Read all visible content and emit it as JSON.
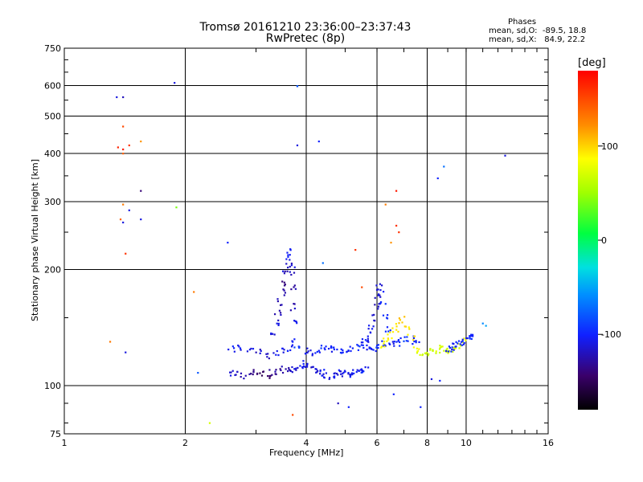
{
  "header": {
    "title_line1": "Tromsø 20161210 23:36:00–23:37:43",
    "title_line2": "RwPretec (8p)",
    "stats_heading": "Phases",
    "stats_o": "mean, sd,O:  -89.5, 18.8",
    "stats_x": "mean, sd,X:   84.9, 22.2"
  },
  "chart_data": {
    "type": "scatter",
    "title": "",
    "xlabel": "Frequency [MHz]",
    "ylabel": "Stationary phase Virtual Height [km]",
    "xscale": "log",
    "yscale": "log",
    "xlim": [
      1,
      16
    ],
    "ylim": [
      75,
      750
    ],
    "x_ticks": [
      1,
      2,
      4,
      6,
      8,
      10,
      16
    ],
    "x_tick_labels": [
      "1",
      "2",
      "4",
      "6",
      "8",
      "10",
      "16"
    ],
    "y_ticks": [
      75,
      100,
      200,
      300,
      400,
      500,
      600,
      750
    ],
    "y_tick_labels": [
      "75",
      "100",
      "200",
      "300",
      "400",
      "500",
      "600",
      "750"
    ],
    "grid": true,
    "colorbar": {
      "label": "[deg]",
      "range": [
        -180,
        180
      ],
      "tick_values": [
        100,
        0,
        -100
      ],
      "tick_labels": [
        "100",
        "0",
        "-100"
      ]
    },
    "series": [
      {
        "x": [
          1.35,
          1.4,
          1.4,
          1.45,
          1.55,
          1.4,
          1.36,
          1.4,
          1.55,
          1.4,
          1.45,
          1.38,
          1.55,
          1.4,
          1.42,
          1.3,
          1.42,
          1.9,
          1.88,
          2.1,
          2.15,
          2.3,
          2.55,
          3.8,
          4.3,
          3.8,
          3.8,
          4.4,
          5.3,
          6.5,
          6.7,
          8.5,
          8.8,
          12.5,
          5.5,
          6.3,
          6.7,
          6.8,
          6.6,
          7.7,
          8.2,
          8.6,
          4.8,
          5.1,
          3.7,
          11,
          11.2,
          3.5
        ],
        "y": [
          560,
          560,
          470,
          420,
          430,
          410,
          415,
          400,
          320,
          295,
          285,
          270,
          270,
          265,
          220,
          130,
          122,
          290,
          610,
          175,
          108,
          80,
          235,
          598,
          430,
          420,
          598,
          208,
          225,
          235,
          320,
          345,
          370,
          395,
          180,
          295,
          260,
          250,
          95,
          88,
          104,
          103,
          90,
          88,
          84,
          145,
          143,
          198
        ],
        "phase": [
          -110,
          -120,
          150,
          160,
          120,
          170,
          165,
          140,
          -140,
          130,
          -110,
          140,
          -110,
          -110,
          160,
          130,
          -110,
          40,
          -110,
          130,
          -80,
          70,
          -100,
          -80,
          -100,
          -110,
          -80,
          -70,
          160,
          120,
          170,
          -100,
          -70,
          -110,
          150,
          130,
          160,
          160,
          -100,
          -100,
          -110,
          -100,
          -120,
          -100,
          150,
          -60,
          -50,
          -110
        ]
      },
      {
        "description": "",
        "trace_low_o": {
          "x": [
            2.6,
            2.7,
            2.8,
            2.9,
            3.0,
            3.1,
            3.2,
            3.3,
            3.4,
            3.5,
            3.6,
            3.7,
            3.8,
            3.9,
            4.0,
            4.1,
            4.2,
            4.3,
            4.4,
            4.5,
            4.6,
            4.7,
            4.8,
            4.9,
            5.0,
            5.1,
            5.2,
            5.3,
            5.4,
            5.5,
            5.6
          ],
          "y": [
            108,
            107,
            106,
            108,
            109,
            107,
            106,
            108,
            109,
            110,
            111,
            110,
            112,
            113,
            114,
            112,
            111,
            109,
            108,
            107,
            106,
            106,
            107,
            108,
            107,
            106,
            107,
            108,
            109,
            110,
            111
          ],
          "phase": [
            -115,
            -120,
            -125,
            -130,
            -140,
            -145,
            -140,
            -135,
            -130,
            -125,
            -120,
            -115,
            -110,
            -105,
            -100,
            -110,
            -115,
            -110,
            -105,
            -110,
            -115,
            -105,
            -110,
            -105,
            -110,
            -105,
            -100,
            -110,
            -105,
            -100,
            -105
          ]
        },
        "trace_mid_o": {
          "x": [
            2.6,
            2.75,
            2.9,
            3.05,
            3.2,
            3.35,
            3.5,
            3.65,
            3.8,
            3.95,
            4.1,
            4.25,
            4.4,
            4.55,
            4.7,
            4.85,
            5.0,
            5.15,
            5.3,
            5.45,
            5.6,
            5.75,
            5.9,
            6.1,
            6.3,
            6.5,
            6.7,
            6.9,
            7.1,
            7.3,
            7.5
          ],
          "y": [
            125,
            126,
            124,
            122,
            120,
            121,
            123,
            124,
            125,
            123,
            122,
            124,
            126,
            125,
            124,
            123,
            122,
            124,
            126,
            127,
            128,
            126,
            125,
            127,
            128,
            130,
            129,
            131,
            133,
            132,
            130
          ],
          "phase": [
            -100,
            -105,
            -110,
            -115,
            -120,
            -110,
            -105,
            -100,
            -95,
            -105,
            -110,
            -100,
            -95,
            -105,
            -100,
            -95,
            -100,
            -105,
            -100,
            -95,
            -100,
            -105,
            -100,
            -95,
            -100,
            -105,
            -100,
            -95,
            -90,
            -95,
            -100
          ]
        },
        "cusp_o": {
          "x": [
            3.3,
            3.35,
            3.4,
            3.45,
            3.5,
            3.55,
            3.6,
            3.62,
            3.64,
            3.66,
            3.68,
            3.7,
            3.72,
            3.74,
            3.76
          ],
          "y": [
            135,
            145,
            155,
            165,
            175,
            185,
            195,
            205,
            215,
            222,
            200,
            180,
            160,
            145,
            130
          ],
          "phase": [
            -110,
            -115,
            -120,
            -125,
            -130,
            -135,
            -125,
            -115,
            -110,
            -105,
            -115,
            -125,
            -120,
            -110,
            -105
          ]
        },
        "cusp_o2": {
          "x": [
            5.6,
            5.7,
            5.8,
            5.9,
            6.0,
            6.05,
            6.1,
            6.15,
            6.2,
            6.3,
            6.4
          ],
          "y": [
            130,
            135,
            142,
            150,
            160,
            170,
            180,
            175,
            165,
            150,
            140
          ],
          "phase": [
            -100,
            -105,
            -110,
            -115,
            -120,
            -115,
            -110,
            -105,
            -100,
            -95,
            -100
          ]
        },
        "trace_x": {
          "x": [
            6.2,
            6.35,
            6.5,
            6.65,
            6.8,
            6.95,
            7.1,
            7.3,
            7.5,
            7.7,
            7.9,
            8.1,
            8.3,
            8.5,
            8.7,
            8.9,
            9.1,
            9.3,
            9.5,
            9.7,
            9.9
          ],
          "y": [
            128,
            131,
            135,
            140,
            145,
            150,
            140,
            133,
            125,
            122,
            121,
            122,
            123,
            124,
            125,
            124,
            123,
            125,
            127,
            128,
            130
          ],
          "phase": [
            80,
            85,
            90,
            95,
            100,
            105,
            95,
            90,
            85,
            75,
            70,
            68,
            70,
            72,
            75,
            70,
            68,
            70,
            72,
            75,
            80
          ]
        },
        "trace_high_o": {
          "x": [
            9.0,
            9.2,
            9.4,
            9.6,
            9.8,
            10.0,
            10.2,
            10.4
          ],
          "y": [
            125,
            126,
            128,
            129,
            130,
            131,
            133,
            135
          ],
          "phase": [
            -100,
            -105,
            -100,
            -95,
            -100,
            -105,
            -100,
            -95
          ]
        }
      }
    ]
  }
}
